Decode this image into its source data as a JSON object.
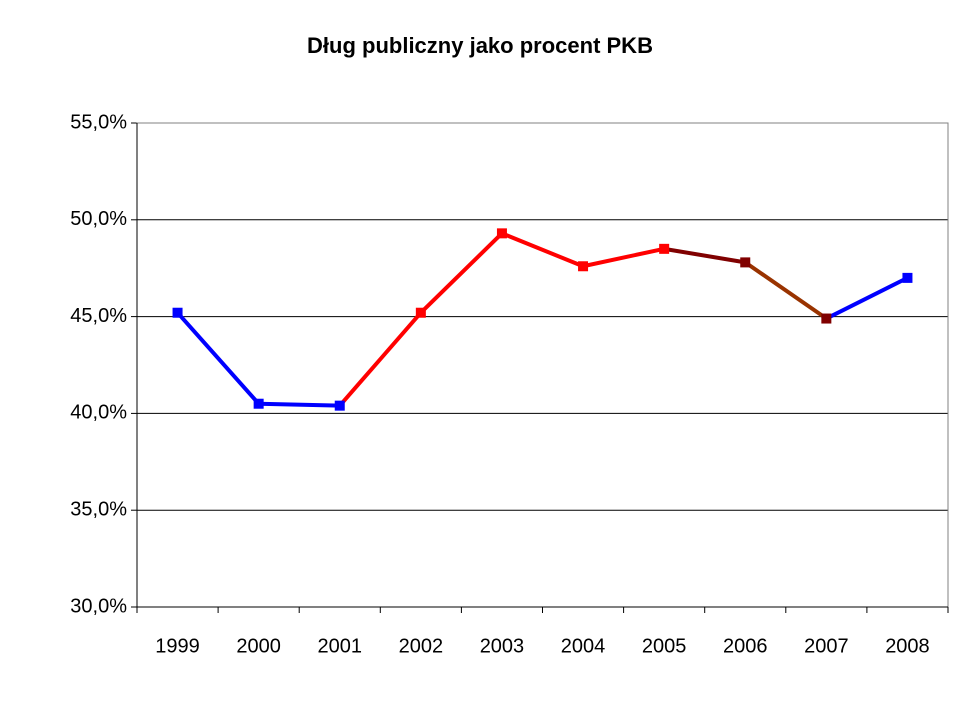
{
  "chart_data": {
    "type": "line",
    "title": "Dług publiczny jako procent PKB",
    "categories": [
      "1999",
      "2000",
      "2001",
      "2002",
      "2003",
      "2004",
      "2005",
      "2006",
      "2007",
      "2008"
    ],
    "values": [
      45.2,
      40.5,
      40.4,
      45.2,
      49.3,
      47.6,
      48.5,
      47.8,
      44.9,
      47.0
    ],
    "segment_colors": [
      "#0000ff",
      "#0000ff",
      "#ff0000",
      "#ff0000",
      "#ff0000",
      "#ff0000",
      "#800000",
      "#993300",
      "#0000ff"
    ],
    "marker_colors": [
      "#0000ff",
      "#0000ff",
      "#0000ff",
      "#ff0000",
      "#ff0000",
      "#ff0000",
      "#ff0000",
      "#800000",
      "#800000",
      "#0000ff"
    ],
    "ylim": [
      30,
      55
    ],
    "yticks": [
      {
        "value": 30,
        "label": "30,0%"
      },
      {
        "value": 35,
        "label": "35,0%"
      },
      {
        "value": 40,
        "label": "40,0%"
      },
      {
        "value": 45,
        "label": "45,0%"
      },
      {
        "value": 50,
        "label": "50,0%"
      },
      {
        "value": 55,
        "label": "55,0%"
      }
    ],
    "grid": true
  }
}
